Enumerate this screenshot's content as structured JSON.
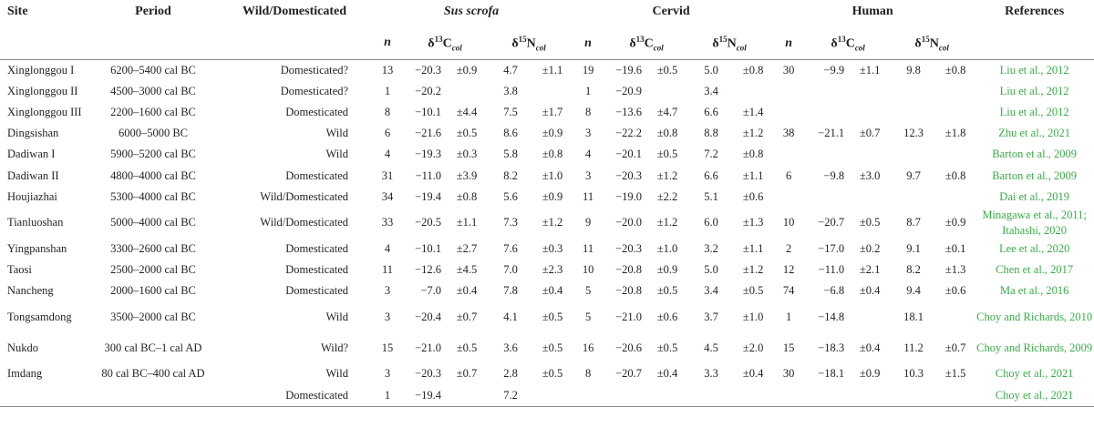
{
  "headers": {
    "site": "Site",
    "period": "Period",
    "wild_dom": "Wild/Domesticated",
    "sus": "Sus scrofa",
    "cervid": "Cervid",
    "human": "Human",
    "references": "References",
    "n": "n",
    "d13c_prefix": "δ",
    "d13c_sup": "13",
    "d13c_main": "C",
    "d15n_sup": "15",
    "d15n_main": "N",
    "col": "col"
  },
  "rows": [
    {
      "site": "Xinglonggou I",
      "period": "6200–5400 cal BC",
      "status": "Domesticated?",
      "sus": [
        "13",
        "−20.3",
        "±0.9",
        "4.7",
        "±1.1"
      ],
      "cervid": [
        "19",
        "−19.6",
        "±0.5",
        "5.0",
        "±0.8"
      ],
      "human": [
        "30",
        "−9.9",
        "±1.1",
        "9.8",
        "±0.8"
      ],
      "ref": "Liu et al., 2012"
    },
    {
      "site": "Xinglonggou II",
      "period": "4500–3000 cal BC",
      "status": "Domesticated?",
      "sus": [
        "1",
        "−20.2",
        "",
        "3.8",
        ""
      ],
      "cervid": [
        "1",
        "−20.9",
        "",
        "3.4",
        ""
      ],
      "human": [
        "",
        "",
        "",
        "",
        ""
      ],
      "ref": "Liu et al., 2012"
    },
    {
      "site": "Xinglonggou III",
      "period": "2200–1600 cal BC",
      "status": "Domesticated",
      "sus": [
        "8",
        "−10.1",
        "±4.4",
        "7.5",
        "±1.7"
      ],
      "cervid": [
        "8",
        "−13.6",
        "±4.7",
        "6.6",
        "±1.4"
      ],
      "human": [
        "",
        "",
        "",
        "",
        ""
      ],
      "ref": "Liu et al., 2012"
    },
    {
      "site": "Dingsishan",
      "period": "6000–5000 BC",
      "status": "Wild",
      "sus": [
        "6",
        "−21.6",
        "±0.5",
        "8.6",
        "±0.9"
      ],
      "cervid": [
        "3",
        "−22.2",
        "±0.8",
        "8.8",
        "±1.2"
      ],
      "human": [
        "38",
        "−21.1",
        "±0.7",
        "12.3",
        "±1.8"
      ],
      "ref": "Zhu et al., 2021"
    },
    {
      "site": "Dadiwan I",
      "period": "5900–5200 cal BC",
      "status": "Wild",
      "sus": [
        "4",
        "−19.3",
        "±0.3",
        "5.8",
        "±0.8"
      ],
      "cervid": [
        "4",
        "−20.1",
        "±0.5",
        "7.2",
        "±0.8"
      ],
      "human": [
        "",
        "",
        "",
        "",
        ""
      ],
      "ref": "Barton et al., 2009"
    },
    {
      "site": "Dadiwan II",
      "period": "4800–4000 cal BC",
      "status": "Domesticated",
      "sus": [
        "31",
        "−11.0",
        "±3.9",
        "8.2",
        "±1.0"
      ],
      "cervid": [
        "3",
        "−20.3",
        "±1.2",
        "6.6",
        "±1.1"
      ],
      "human": [
        "6",
        "−9.8",
        "±3.0",
        "9.7",
        "±0.8"
      ],
      "ref": "Barton et al., 2009"
    },
    {
      "site": "Houjiazhai",
      "period": "5300–4000 cal BC",
      "status": "Wild/Domesticated",
      "sus": [
        "34",
        "−19.4",
        "±0.8",
        "5.6",
        "±0.9"
      ],
      "cervid": [
        "11",
        "−19.0",
        "±2.2",
        "5.1",
        "±0.6"
      ],
      "human": [
        "",
        "",
        "",
        "",
        ""
      ],
      "ref": "Dai et al., 2019"
    },
    {
      "site": "Tianluoshan",
      "period": "5000–4000 cal BC",
      "status": "Wild/Domesticated",
      "sus": [
        "33",
        "−20.5",
        "±1.1",
        "7.3",
        "±1.2"
      ],
      "cervid": [
        "9",
        "−20.0",
        "±1.2",
        "6.0",
        "±1.3"
      ],
      "human": [
        "10",
        "−20.7",
        "±0.5",
        "8.7",
        "±0.9"
      ],
      "ref": "Minagawa et al., 2011; Itahashi, 2020",
      "tall": true
    },
    {
      "site": "Yingpanshan",
      "period": "3300–2600 cal BC",
      "status": "Domesticated",
      "sus": [
        "4",
        "−10.1",
        "±2.7",
        "7.6",
        "±0.3"
      ],
      "cervid": [
        "11",
        "−20.3",
        "±1.0",
        "3.2",
        "±1.1"
      ],
      "human": [
        "2",
        "−17.0",
        "±0.2",
        "9.1",
        "±0.1"
      ],
      "ref": "Lee et al., 2020"
    },
    {
      "site": "Taosi",
      "period": "2500–2000 cal BC",
      "status": "Domesticated",
      "sus": [
        "11",
        "−12.6",
        "±4.5",
        "7.0",
        "±2.3"
      ],
      "cervid": [
        "10",
        "−20.8",
        "±0.9",
        "5.0",
        "±1.2"
      ],
      "human": [
        "12",
        "−11.0",
        "±2.1",
        "8.2",
        "±1.3"
      ],
      "ref": "Chen et al., 2017"
    },
    {
      "site": "Nancheng",
      "period": "2000–1600 cal BC",
      "status": "Domesticated",
      "sus": [
        "3",
        "−7.0",
        "±0.4",
        "7.8",
        "±0.4"
      ],
      "cervid": [
        "5",
        "−20.8",
        "±0.5",
        "3.4",
        "±0.5"
      ],
      "human": [
        "74",
        "−6.8",
        "±0.4",
        "9.4",
        "±0.6"
      ],
      "ref": "Ma et al., 2016"
    },
    {
      "site": "Tongsamdong",
      "period": "3500–2000 cal BC",
      "status": "Wild",
      "sus": [
        "3",
        "−20.4",
        "±0.7",
        "4.1",
        "±0.5"
      ],
      "cervid": [
        "5",
        "−21.0",
        "±0.6",
        "3.7",
        "±1.0"
      ],
      "human": [
        "1",
        "−14.8",
        "",
        "18.1",
        ""
      ],
      "ref": "Choy and Richards, 2010",
      "tall": true
    },
    {
      "site": "Nukdo",
      "period": "300 cal BC–1 cal AD",
      "status": "Wild?",
      "sus": [
        "15",
        "−21.0",
        "±0.5",
        "3.6",
        "±0.5"
      ],
      "cervid": [
        "16",
        "−20.6",
        "±0.5",
        "4.5",
        "±2.0"
      ],
      "human": [
        "15",
        "−18.3",
        "±0.4",
        "11.2",
        "±0.7"
      ],
      "ref": "Choy and Richards, 2009",
      "tall": true
    },
    {
      "site": "Imdang",
      "period": "80 cal BC–400 cal AD",
      "status": "Wild",
      "sus": [
        "3",
        "−20.3",
        "±0.7",
        "2.8",
        "±0.5"
      ],
      "cervid": [
        "8",
        "−20.7",
        "±0.4",
        "3.3",
        "±0.4"
      ],
      "human": [
        "30",
        "−18.1",
        "±0.9",
        "10.3",
        "±1.5"
      ],
      "ref": "Choy et al., 2021"
    },
    {
      "site": "",
      "period": "",
      "status": "Domesticated",
      "sus": [
        "1",
        "−19.4",
        "",
        "7.2",
        ""
      ],
      "cervid": [
        "",
        "",
        "",
        "",
        ""
      ],
      "human": [
        "",
        "",
        "",
        "",
        ""
      ],
      "ref": "Choy et al., 2021"
    }
  ]
}
